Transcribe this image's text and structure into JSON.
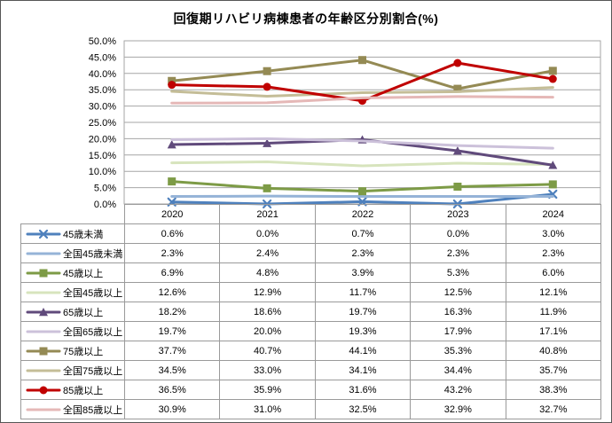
{
  "chart_data": {
    "type": "line",
    "title": "回復期リハビリ病棟患者の年齢区分別割合(%)",
    "categories": [
      "2020",
      "2021",
      "2022",
      "2023",
      "2024"
    ],
    "xlabel": "",
    "ylabel": "",
    "ylim": [
      0,
      50
    ],
    "ytick_step": 5,
    "ytick_labels": [
      "50.0%",
      "45.0%",
      "40.0%",
      "35.0%",
      "30.0%",
      "25.0%",
      "20.0%",
      "15.0%",
      "10.0%",
      "5.0%",
      "0.0%"
    ],
    "grid": true,
    "value_format": "percent1",
    "legend_position": "data-table-left",
    "colors": {
      "gridline": "#a6a6a6",
      "plot_border": "#a6a6a6",
      "table_border": "#9a9a9a",
      "frame_border": "#565656",
      "text": "#000000"
    },
    "series": [
      {
        "id": "under45",
        "name": "45歳未満",
        "color": "#4F81BD",
        "marker": "x",
        "values": [
          0.6,
          0.0,
          0.7,
          0.0,
          3.0
        ]
      },
      {
        "id": "national-under45",
        "name": "全国45歳未満",
        "color": "#95B3D7",
        "marker": "none",
        "values": [
          2.3,
          2.4,
          2.3,
          2.3,
          2.3
        ]
      },
      {
        "id": "over45",
        "name": "45歳以上",
        "color": "#7D9B46",
        "marker": "square",
        "values": [
          6.9,
          4.8,
          3.9,
          5.3,
          6.0
        ]
      },
      {
        "id": "national-over45",
        "name": "全国45歳以上",
        "color": "#D7E4BD",
        "marker": "none",
        "values": [
          12.6,
          12.9,
          11.7,
          12.5,
          12.1
        ]
      },
      {
        "id": "over65",
        "name": "65歳以上",
        "color": "#604A7B",
        "marker": "triangle",
        "values": [
          18.2,
          18.6,
          19.7,
          16.3,
          11.9
        ]
      },
      {
        "id": "national-over65",
        "name": "全国65歳以上",
        "color": "#CCC1DA",
        "marker": "none",
        "values": [
          19.7,
          20.0,
          19.3,
          17.9,
          17.1
        ]
      },
      {
        "id": "over75",
        "name": "75歳以上",
        "color": "#948A54",
        "marker": "square",
        "values": [
          37.7,
          40.7,
          44.1,
          35.3,
          40.8
        ]
      },
      {
        "id": "national-over75",
        "name": "全国75歳以上",
        "color": "#C4BD97",
        "marker": "none",
        "values": [
          34.5,
          33.0,
          34.1,
          34.4,
          35.7
        ]
      },
      {
        "id": "over85",
        "name": "85歳以上",
        "color": "#C00000",
        "marker": "circle",
        "values": [
          36.5,
          35.9,
          31.6,
          43.2,
          38.3
        ]
      },
      {
        "id": "national-over85",
        "name": "全国85歳以上",
        "color": "#E5B8B7",
        "marker": "none",
        "values": [
          30.9,
          31.0,
          32.5,
          32.9,
          32.7
        ]
      }
    ]
  }
}
